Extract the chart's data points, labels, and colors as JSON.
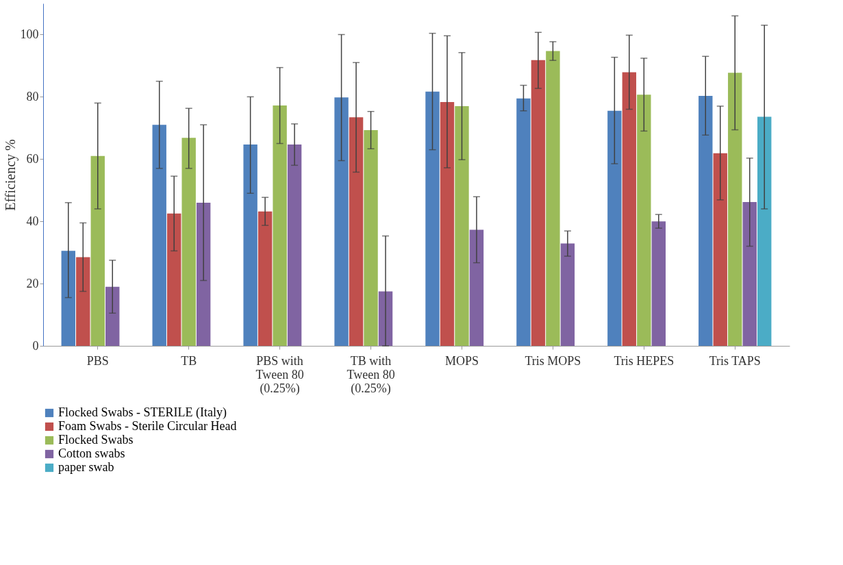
{
  "chart_data": {
    "type": "bar",
    "ylabel": "Efficiency %",
    "categories": [
      "PBS",
      "TB",
      "PBS with\nTween 80\n(0.25%)",
      "TB with\nTween 80\n(0.25%)",
      "MOPS",
      "Tris MOPS",
      "Tris HEPES",
      "Tris TAPS"
    ],
    "series": [
      {
        "name": "Flocked Swabs - STERILE (Italy)",
        "color": "#4f81bd",
        "values": [
          30.5,
          71,
          64.7,
          79.8,
          81.7,
          79.5,
          75.5,
          80.3
        ],
        "errors": [
          [
            15.5,
            46
          ],
          [
            57,
            85
          ],
          [
            49,
            80
          ],
          [
            59.5,
            100
          ],
          [
            63,
            100.4
          ],
          [
            75.5,
            83.7
          ],
          [
            58.5,
            92.7
          ],
          [
            67.7,
            93
          ]
        ]
      },
      {
        "name": "Foam Swabs - Sterile Circular Head",
        "color": "#c0504d",
        "values": [
          28.5,
          42.5,
          43.2,
          73.4,
          78.3,
          91.8,
          87.9,
          61.9
        ],
        "errors": [
          [
            17.5,
            39.5
          ],
          [
            30.5,
            54.5
          ],
          [
            38.7,
            47.7
          ],
          [
            55.8,
            91
          ],
          [
            57.2,
            99.6
          ],
          [
            82.7,
            100.7
          ],
          [
            76,
            99.8
          ],
          [
            46.9,
            77
          ]
        ]
      },
      {
        "name": "Flocked Swabs",
        "color": "#9bbb59",
        "values": [
          61,
          66.8,
          77.2,
          69.3,
          77,
          94.7,
          80.7,
          87.7
        ],
        "errors": [
          [
            44,
            78
          ],
          [
            57,
            76.3
          ],
          [
            65,
            89.4
          ],
          [
            63.3,
            75.3
          ],
          [
            59.8,
            94.2
          ],
          [
            91.7,
            97.7
          ],
          [
            69,
            92.4
          ],
          [
            69.4,
            106
          ]
        ]
      },
      {
        "name": "Cotton swabs",
        "color": "#8064a2",
        "values": [
          19,
          46,
          64.7,
          17.5,
          37.3,
          32.9,
          40,
          46.2
        ],
        "errors": [
          [
            10.5,
            27.5
          ],
          [
            21,
            71
          ],
          [
            58,
            71.3
          ],
          [
            0,
            35.3
          ],
          [
            26.7,
            47.9
          ],
          [
            28.8,
            36.9
          ],
          [
            37.8,
            42.2
          ],
          [
            32,
            60.3
          ]
        ]
      },
      {
        "name": "paper swab",
        "color": "#4bacc6",
        "values": [
          null,
          null,
          null,
          null,
          null,
          null,
          null,
          73.6
        ],
        "errors": [
          null,
          null,
          null,
          null,
          null,
          null,
          null,
          [
            44,
            103
          ]
        ]
      }
    ],
    "ylim": [
      0,
      110
    ],
    "yticks": [
      0,
      20,
      40,
      60,
      80,
      100
    ],
    "grid": false,
    "legend": "bottom"
  }
}
